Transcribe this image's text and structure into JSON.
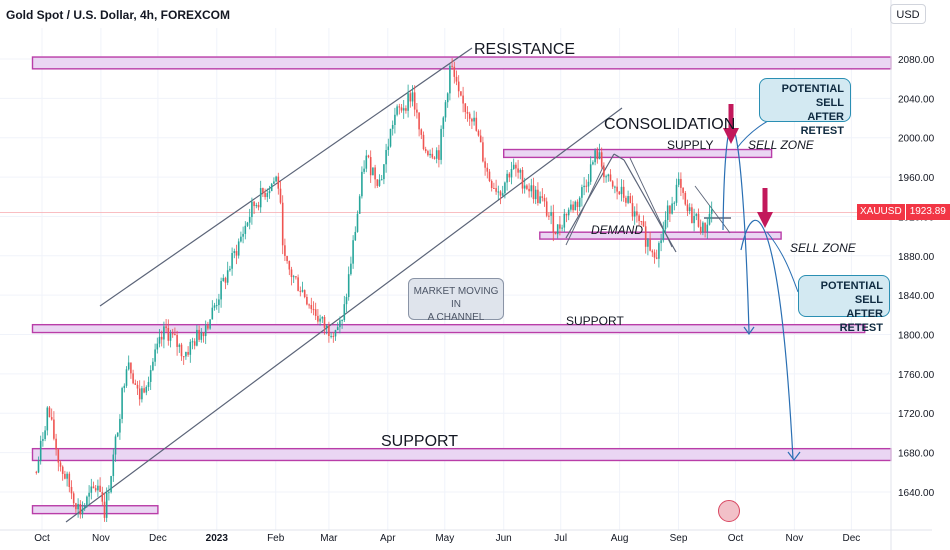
{
  "header": {
    "title": "Gold Spot / U.S. Dollar, 4h, FOREXCOM",
    "currency": "USD"
  },
  "price_tag": {
    "symbol": "XAUUSD",
    "value": "1923.89"
  },
  "annotations": {
    "resistance": "RESISTANCE",
    "consolidation": "CONSOLIDATION",
    "supply": "SUPPLY",
    "sell_zone_1": "SELL ZONE",
    "demand": "DEMAND",
    "sell_zone_2": "SELL ZONE",
    "support_1": "SUPPORT",
    "support_2": "SUPPORT"
  },
  "callout_1": {
    "line1": "POTENTIAL SELL",
    "line2": "AFTER RETEST"
  },
  "callout_2": {
    "line1": "POTENTIAL SELL",
    "line2": "AFTER RETEST"
  },
  "channel_note": {
    "line1": "MARKET MOVING IN",
    "line2": "A CHANNEL"
  },
  "colors": {
    "zone_fill": "#ead6f3",
    "zone_border": "#b93da8",
    "channel": "#5b6478",
    "arrow": "#c2185b",
    "projection": "#2a6fb3",
    "bull": "#26a69a",
    "bear": "#ef5350"
  },
  "chart_data": {
    "type": "candlestick",
    "x_ticks": [
      "Oct",
      "Nov",
      "Dec",
      "2023",
      "Feb",
      "Mar",
      "Apr",
      "May",
      "Jun",
      "Jul",
      "Aug",
      "Sep",
      "Oct",
      "Nov",
      "Dec"
    ],
    "y_ticks": [
      1640,
      1680,
      1720,
      1760,
      1800,
      1840,
      1880,
      1920,
      1960,
      2000,
      2040,
      2080
    ],
    "y_tick_labels": [
      "1640.00",
      "1680.00",
      "1720.00",
      "1760.00",
      "1800.00",
      "1840.00",
      "1880.00",
      "1920.00",
      "1960.00",
      "2000.00",
      "2040.00",
      "2080.00"
    ],
    "ylim": [
      1610,
      2115
    ],
    "last_price": 1923.89,
    "price_path": [
      [
        "2022-09-28",
        1660
      ],
      [
        "2022-10-04",
        1725
      ],
      [
        "2022-10-10",
        1670
      ],
      [
        "2022-10-21",
        1620
      ],
      [
        "2022-10-31",
        1650
      ],
      [
        "2022-11-03",
        1620
      ],
      [
        "2022-11-08",
        1680
      ],
      [
        "2022-11-15",
        1780
      ],
      [
        "2022-11-21",
        1735
      ],
      [
        "2022-12-05",
        1805
      ],
      [
        "2022-12-15",
        1780
      ],
      [
        "2022-12-28",
        1815
      ],
      [
        "2023-01-10",
        1880
      ],
      [
        "2023-01-20",
        1930
      ],
      [
        "2023-01-26",
        1945
      ],
      [
        "2023-02-02",
        1960
      ],
      [
        "2023-02-06",
        1870
      ],
      [
        "2023-02-15",
        1845
      ],
      [
        "2023-02-24",
        1815
      ],
      [
        "2023-02-28",
        1805
      ],
      [
        "2023-03-08",
        1810
      ],
      [
        "2023-03-13",
        1880
      ],
      [
        "2023-03-20",
        1980
      ],
      [
        "2023-03-28",
        1955
      ],
      [
        "2023-04-04",
        2020
      ],
      [
        "2023-04-14",
        2045
      ],
      [
        "2023-04-19",
        1990
      ],
      [
        "2023-04-28",
        1985
      ],
      [
        "2023-05-04",
        2075
      ],
      [
        "2023-05-09",
        2035
      ],
      [
        "2023-05-15",
        2025
      ],
      [
        "2023-05-24",
        1960
      ],
      [
        "2023-05-30",
        1945
      ],
      [
        "2023-06-05",
        1970
      ],
      [
        "2023-06-14",
        1950
      ],
      [
        "2023-06-21",
        1935
      ],
      [
        "2023-06-29",
        1905
      ],
      [
        "2023-07-04",
        1925
      ],
      [
        "2023-07-10",
        1935
      ],
      [
        "2023-07-18",
        1975
      ],
      [
        "2023-07-20",
        1985
      ],
      [
        "2023-07-27",
        1950
      ],
      [
        "2023-08-04",
        1940
      ],
      [
        "2023-08-10",
        1915
      ],
      [
        "2023-08-17",
        1890
      ],
      [
        "2023-08-21",
        1885
      ],
      [
        "2023-08-28",
        1935
      ],
      [
        "2023-09-01",
        1952
      ],
      [
        "2023-09-05",
        1925
      ],
      [
        "2023-09-12",
        1915
      ],
      [
        "2023-09-14",
        1905
      ],
      [
        "2023-09-19",
        1930
      ]
    ],
    "zones": [
      {
        "label": "resistance",
        "low": 2070,
        "high": 2082,
        "from": "2022-09-26",
        "to": "2023-12-31"
      },
      {
        "label": "supply",
        "low": 1980,
        "high": 1988,
        "from": "2023-06-01",
        "to": "2023-10-20"
      },
      {
        "label": "demand",
        "low": 1897,
        "high": 1904,
        "from": "2023-06-20",
        "to": "2023-10-25"
      },
      {
        "label": "support",
        "low": 1802,
        "high": 1810,
        "from": "2022-09-26",
        "to": "2023-12-08"
      },
      {
        "label": "support",
        "low": 1672,
        "high": 1684,
        "from": "2022-09-26",
        "to": "2023-12-31"
      },
      {
        "label": "base",
        "low": 1618,
        "high": 1626,
        "from": "2022-09-26",
        "to": "2022-12-01"
      }
    ]
  }
}
